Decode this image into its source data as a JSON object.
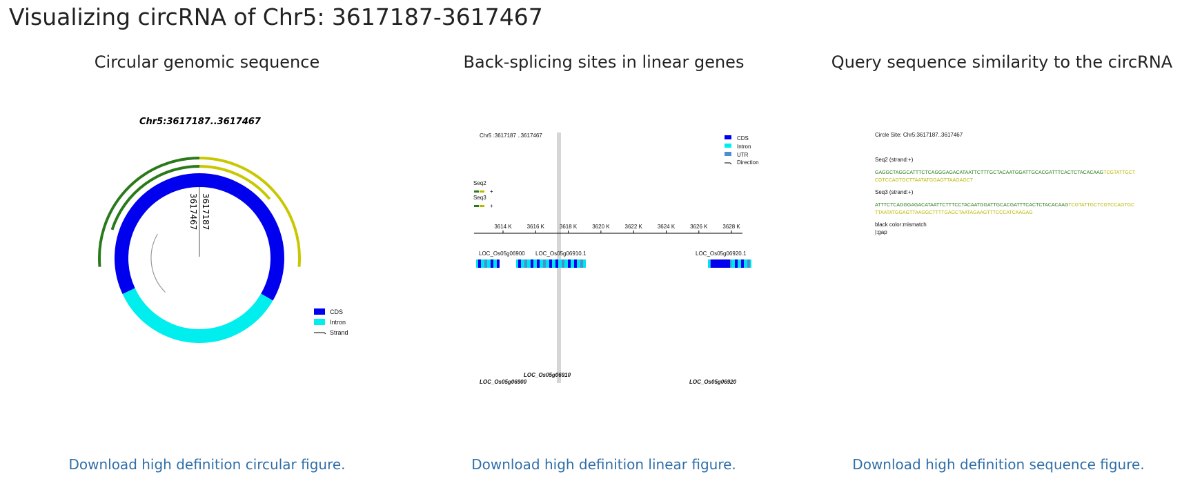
{
  "header": {
    "title": "Visualizing circRNA of Chr5: 3617187-3617467"
  },
  "panels": [
    {
      "title": "Circular genomic sequence",
      "figure": {
        "title": "Chr5:3617187..3617467",
        "start_label": "3617187",
        "end_label": "3617467",
        "legend": [
          "CDS",
          "Intron",
          "Strand"
        ]
      },
      "link": "Download high definition circular figure."
    },
    {
      "title": "Back-splicing sites in linear genes",
      "figure": {
        "site": "Chr5 :3617187 ..3617467",
        "legend": [
          "CDS",
          "Intron",
          "UTR",
          "Direction"
        ],
        "reads": [
          {
            "name": "Seq2",
            "strand": "+"
          },
          {
            "name": "Seq3",
            "strand": "+"
          }
        ],
        "axis_ticks": [
          "3614 K",
          "3616 K",
          "3618 K",
          "3620 K",
          "3622 K",
          "3624 K",
          "3626 K",
          "3628 K"
        ],
        "transcripts": [
          "LOC_Os05g06900",
          "LOC_Os05g06910.1",
          "LOC_Os05g06920.1"
        ],
        "genes": [
          "LOC_Os05g06910",
          "LOC_Os05g06900",
          "LOC_Os05g06920"
        ]
      },
      "link": "Download high definition linear figure."
    },
    {
      "title": "Query sequence similarity to the circRNA",
      "figure": {
        "site": "Circle Site: Chr5:3617187..3617467",
        "queries": [
          {
            "label": "Seq2 (strand:+)",
            "lines": [
              [
                "GAGGCTAGGCATTTCTCAGGGAGACATAATTCTTTGCTACAATGGATTGCACGATTTCACTCTACACAAG",
                "TCGTATTGCT"
              ],
              [
                "",
                "CGTCCAGTGCTTAATATGGAGTTAAGAGCT"
              ]
            ]
          },
          {
            "label": "Seq3 (strand:+)",
            "lines": [
              [
                "ATTTCTCAGGGAGACATAATTCTTTCCTACAATGGATTGCACGATTTCACTCTACACAAG",
                "TCGTATTGCTCGTCCAGTGC"
              ],
              [
                "",
                "TTAATATGGAGTTAAGGCTTTTGAGCTAATAGAAGTTTCCCATCAAGAG"
              ]
            ]
          }
        ],
        "notes": [
          "black color:mismatch",
          "|:gap"
        ]
      },
      "link": "Download high definition sequence figure."
    }
  ]
}
